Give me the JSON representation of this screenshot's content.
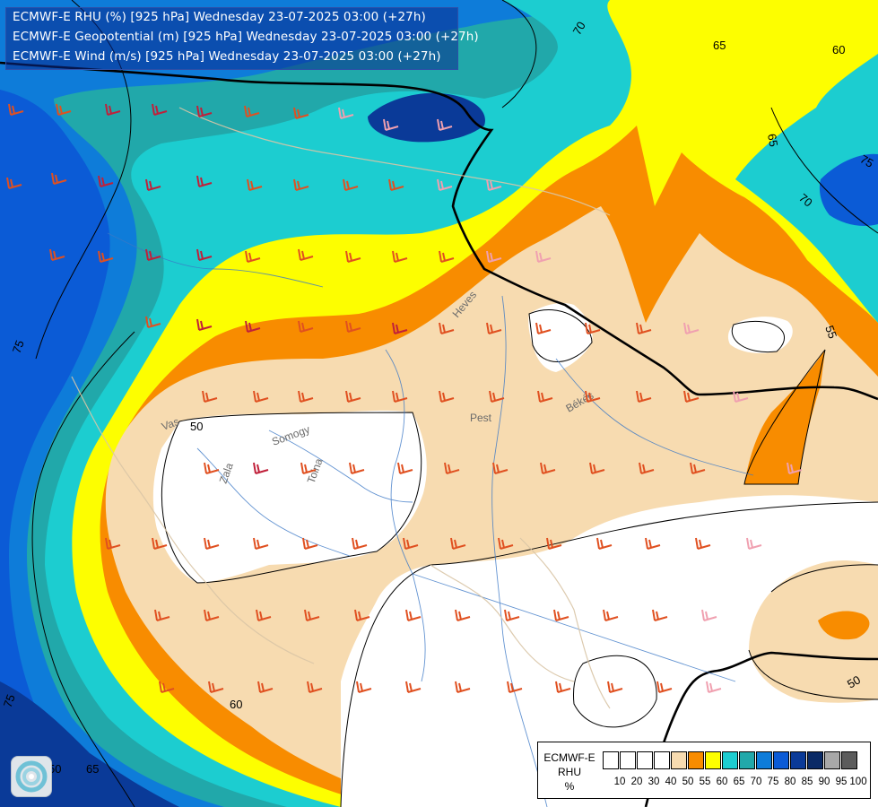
{
  "header": {
    "lines": [
      "ECMWF-E RHU (%) [925 hPa] Wednesday 23-07-2025 03:00 (+27h)",
      "ECMWF-E Geopotential (m) [925 hPa] Wednesday 23-07-2025 03:00 (+27h)",
      "ECMWF-E Wind (m/s) [925 hPa] Wednesday 23-07-2025 03:00 (+27h)"
    ]
  },
  "legend": {
    "title_lines": [
      "ECMWF-E",
      "RHU",
      "%"
    ],
    "ticks": [
      "10",
      "20",
      "30",
      "40",
      "50",
      "55",
      "60",
      "65",
      "70",
      "75",
      "80",
      "85",
      "90",
      "95",
      "100"
    ],
    "colors": [
      "#ffffff",
      "#ffffff",
      "#ffffff",
      "#ffffff",
      "#f7dbb0",
      "#f88c00",
      "#fdfe00",
      "#1ccdd0",
      "#21a8aa",
      "#0e7cd9",
      "#0b5bd6",
      "#0a3a98",
      "#0a2a66",
      "#a8a8a8",
      "#5c5c5c"
    ]
  },
  "map": {
    "place_labels": [
      "Vas",
      "Zala",
      "Somogy",
      "Tolna",
      "Pest",
      "Békés",
      "Heves"
    ],
    "geopotential_labels": [
      "70",
      "65",
      "65",
      "60",
      "75",
      "70",
      "55",
      "50",
      "50",
      "60",
      "65",
      "75",
      "50",
      "75"
    ]
  },
  "logo": {
    "icon": "ecmwf-swirl-icon"
  }
}
